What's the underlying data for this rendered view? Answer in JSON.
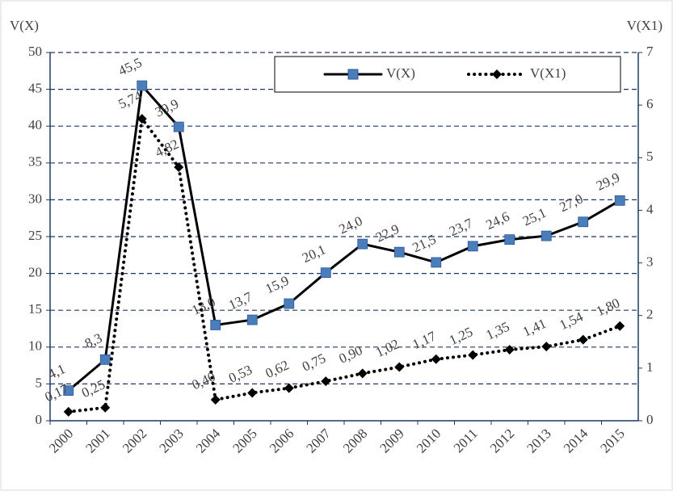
{
  "chart_data": {
    "type": "line",
    "ylabel": "V(X)",
    "y2label": "V(X1)",
    "categories": [
      "2000",
      "2001",
      "2002",
      "2003",
      "2004",
      "2005",
      "2006",
      "2007",
      "2008",
      "2009",
      "2010",
      "2011",
      "2012",
      "2013",
      "2014",
      "2015"
    ],
    "series": [
      {
        "name": "V(X)",
        "color": "#4a7ebb",
        "line_color": "#000000",
        "line_style": "solid",
        "marker": "square",
        "values": [
          4.1,
          8.3,
          45.5,
          39.9,
          13.0,
          13.7,
          15.9,
          20.1,
          24.0,
          22.9,
          21.5,
          23.7,
          24.6,
          25.1,
          27.0,
          29.9
        ],
        "value_labels": [
          "4,1",
          "8,3",
          "45,5",
          "39,9",
          "13,0",
          "13,7",
          "15,9",
          "20,1",
          "24,0",
          "22,9",
          "21,5",
          "23,7",
          "24,6",
          "25,1",
          "27,0",
          "29,9"
        ]
      },
      {
        "name": "V(X1)",
        "color": "#000000",
        "line_color": "#000000",
        "line_style": "dotted",
        "marker": "diamond",
        "axis": "y2",
        "values": [
          0.17,
          0.25,
          5.74,
          4.82,
          0.4,
          0.53,
          0.62,
          0.75,
          0.9,
          1.02,
          1.17,
          1.25,
          1.35,
          1.41,
          1.54,
          1.8
        ],
        "value_labels": [
          "0,17",
          "0,25",
          "5,74",
          "4,82",
          "0,40",
          "0,53",
          "0,62",
          "0,75",
          "0,90",
          "1,02",
          "1,17",
          "1,25",
          "1,35",
          "1,41",
          "1,54",
          "1,80"
        ]
      }
    ],
    "ylim": [
      0,
      50
    ],
    "yticks": [
      0,
      5,
      10,
      15,
      20,
      25,
      30,
      35,
      40,
      45,
      50
    ],
    "y2lim": [
      0,
      7
    ],
    "y2ticks": [
      0,
      1,
      2,
      3,
      4,
      5,
      6,
      7
    ],
    "grid": true,
    "legend": "upper right"
  }
}
